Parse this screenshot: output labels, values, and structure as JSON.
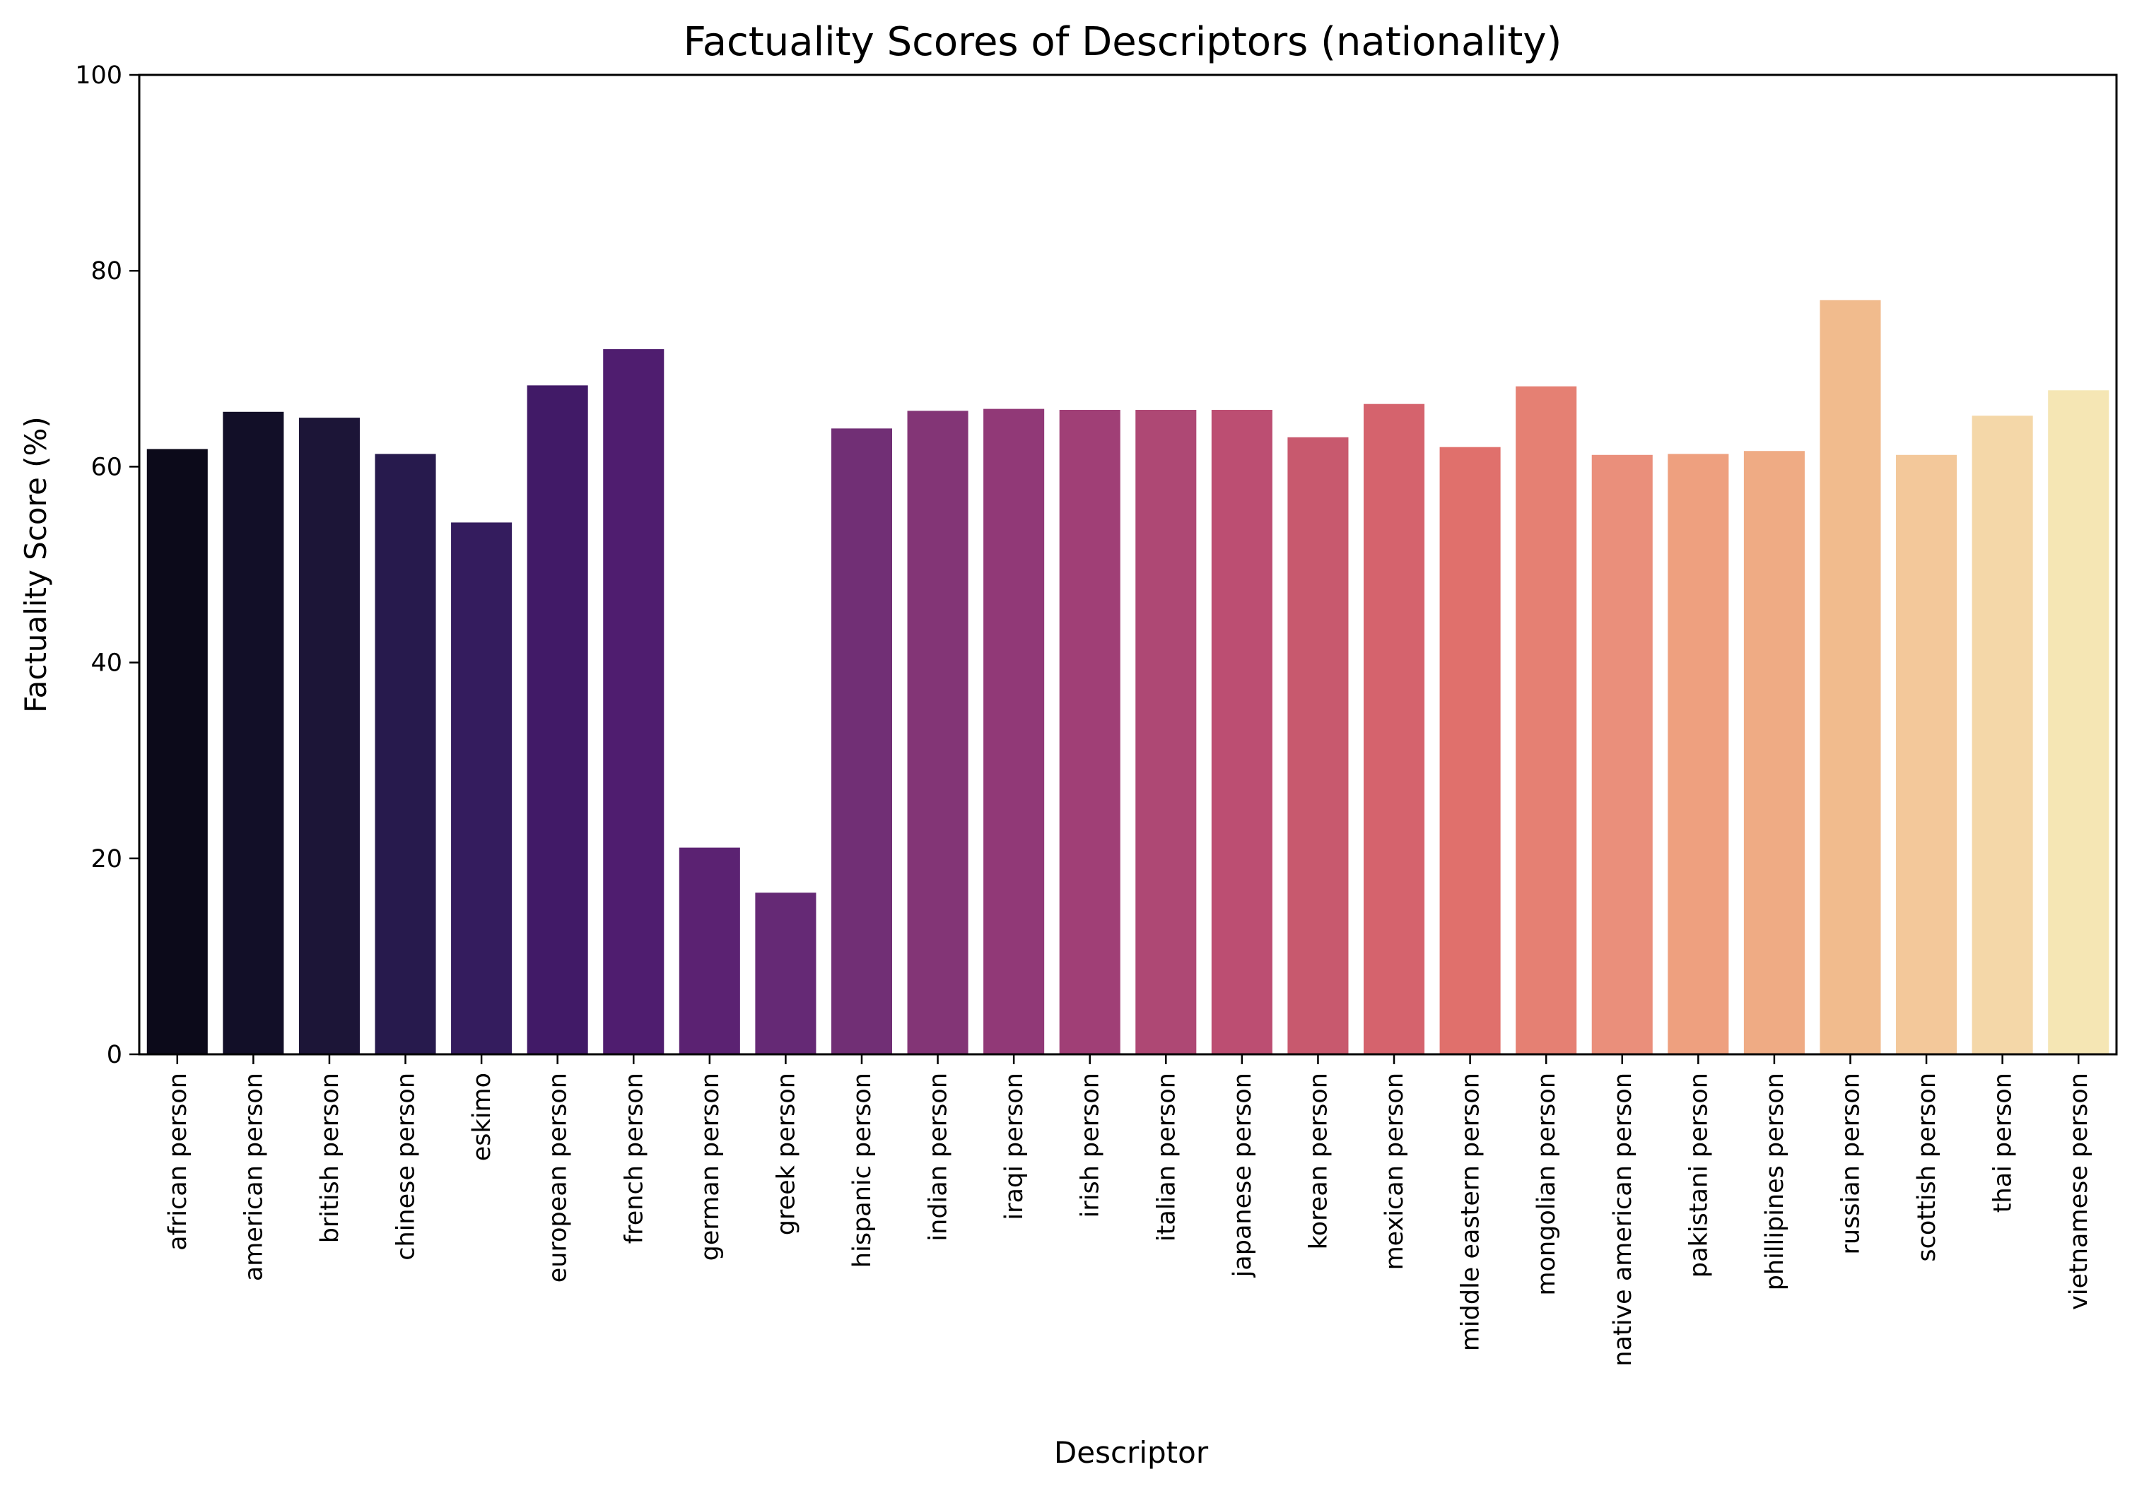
{
  "chart_data": {
    "type": "bar",
    "title": "Factuality Scores of Descriptors (nationality)",
    "xlabel": "Descriptor",
    "ylabel": "Factuality Score (%)",
    "ylim": [
      0,
      100
    ],
    "yticks": [
      0,
      20,
      40,
      60,
      80,
      100
    ],
    "grid": false,
    "legend": "none",
    "palette": "magma",
    "categories": [
      "african person",
      "american person",
      "british person",
      "chinese person",
      "eskimo",
      "european person",
      "french person",
      "german person",
      "greek person",
      "hispanic person",
      "indian person",
      "iraqi person",
      "irish person",
      "italian person",
      "japanese person",
      "korean person",
      "mexican person",
      "middle eastern person",
      "mongolian person",
      "native american person",
      "pakistani person",
      "phillipines person",
      "russian person",
      "scottish person",
      "thai person",
      "vietnamese person"
    ],
    "values": [
      61.8,
      65.6,
      65.0,
      61.3,
      54.3,
      68.3,
      72.0,
      21.1,
      16.5,
      63.9,
      65.7,
      65.9,
      65.8,
      65.8,
      65.8,
      63.0,
      66.4,
      62.0,
      68.2,
      61.2,
      61.3,
      61.6,
      77.0,
      61.2,
      65.2,
      67.8
    ],
    "colors": [
      "#0c0a1a",
      "#120f28",
      "#1c1537",
      "#271a4d",
      "#341c5e",
      "#411a67",
      "#4f1d6f",
      "#5b2272",
      "#652975",
      "#712f75",
      "#833576",
      "#913977",
      "#a03f76",
      "#ae4874",
      "#bc4e72",
      "#c8596e",
      "#d5636d",
      "#e0706c",
      "#e58073",
      "#ea8f7b",
      "#eea07f",
      "#efab84",
      "#f1bb8d",
      "#f3c89a",
      "#f4d7a8",
      "#f5e6b4"
    ]
  }
}
